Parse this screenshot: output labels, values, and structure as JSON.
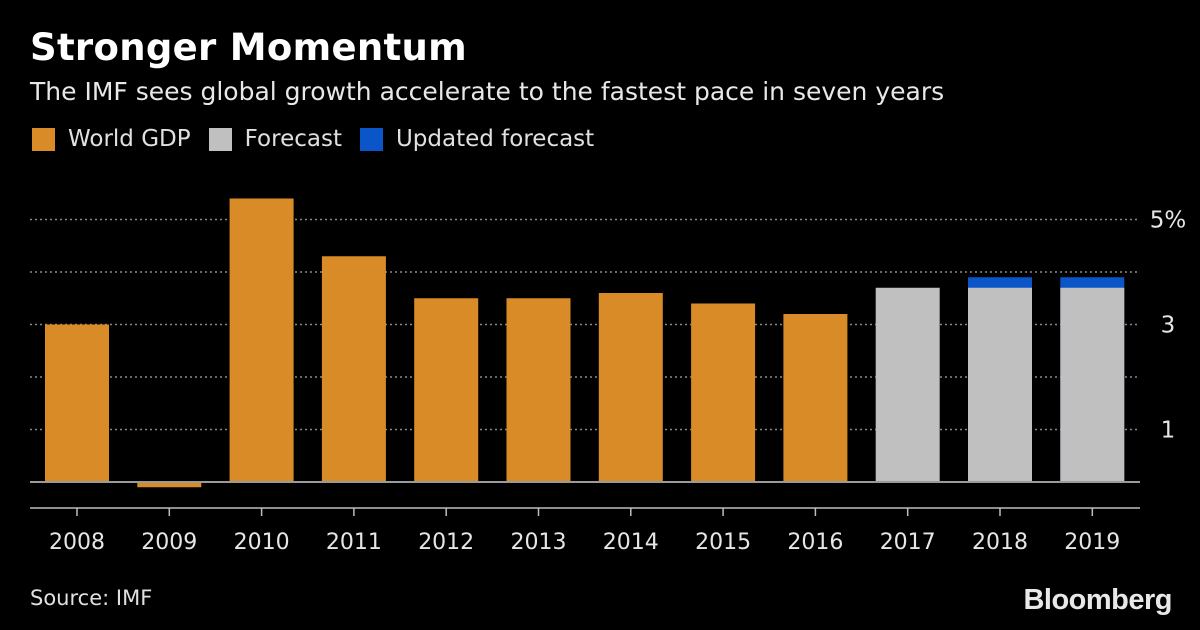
{
  "chart_data": {
    "type": "bar",
    "title": "Stronger Momentum",
    "subtitle": "The IMF sees global growth accelerate to the fastest pace in seven years",
    "categories": [
      "2008",
      "2009",
      "2010",
      "2011",
      "2012",
      "2013",
      "2014",
      "2015",
      "2016",
      "2017",
      "2018",
      "2019"
    ],
    "series": [
      {
        "name": "World GDP",
        "color": "#d98b27",
        "values": [
          3.0,
          -0.1,
          5.4,
          4.3,
          3.5,
          3.5,
          3.6,
          3.4,
          3.2,
          null,
          null,
          null
        ]
      },
      {
        "name": "Forecast",
        "color": "#c0c0c0",
        "values": [
          null,
          null,
          null,
          null,
          null,
          null,
          null,
          null,
          null,
          3.7,
          3.7,
          3.7
        ]
      },
      {
        "name": "Updated forecast",
        "color": "#0a55c8",
        "values": [
          null,
          null,
          null,
          null,
          null,
          null,
          null,
          null,
          null,
          null,
          3.9,
          3.9
        ]
      }
    ],
    "legend": [
      "World GDP",
      "Forecast",
      "Updated forecast"
    ],
    "y_ticks": [
      {
        "value": 5,
        "label": "5%"
      },
      {
        "value": 3,
        "label": "3"
      },
      {
        "value": 1,
        "label": "1"
      }
    ],
    "gridlines": [
      1,
      2,
      3,
      4,
      5
    ],
    "ylim": [
      -0.5,
      5.5
    ],
    "xlabel": "",
    "ylabel": "",
    "y_axis_side": "right",
    "grid": true
  },
  "footer": {
    "source": "Source: IMF",
    "brand": "Bloomberg"
  }
}
